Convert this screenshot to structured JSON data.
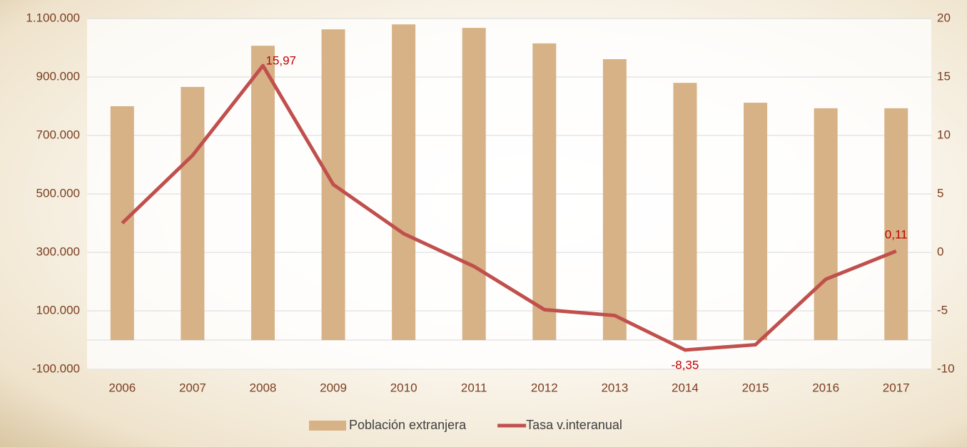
{
  "chart_data": {
    "type": "bar",
    "categories": [
      "2006",
      "2007",
      "2008",
      "2009",
      "2010",
      "2011",
      "2012",
      "2013",
      "2014",
      "2015",
      "2016",
      "2017"
    ],
    "series": [
      {
        "name": "Población extranjera",
        "color": "#d6b286",
        "type": "bar",
        "values": [
          800000,
          866000,
          1007000,
          1063000,
          1080000,
          1068000,
          1015000,
          961000,
          880000,
          812000,
          793000,
          793000
        ]
      },
      {
        "name": "Tasa v.interanual",
        "color": "#c0504d",
        "type": "line",
        "axis": "y2",
        "values": [
          2.5,
          8.3,
          15.97,
          5.8,
          1.6,
          -1.2,
          -4.9,
          -5.4,
          -8.35,
          -7.9,
          -2.3,
          0.11
        ],
        "value_labels": [
          null,
          null,
          "15,97",
          null,
          null,
          null,
          null,
          null,
          "-8,35",
          null,
          null,
          "0,11"
        ]
      }
    ],
    "ylim": [
      -100000,
      1100000
    ],
    "yticks": [
      {
        "value": -100000,
        "label": "-100.000"
      },
      {
        "value": 100000,
        "label": "100.000"
      },
      {
        "value": 300000,
        "label": "300.000"
      },
      {
        "value": 500000,
        "label": "500.000"
      },
      {
        "value": 700000,
        "label": "700.000"
      },
      {
        "value": 900000,
        "label": "900.000"
      },
      {
        "value": 1100000,
        "label": "1.100.000"
      }
    ],
    "y2lim": [
      -10,
      20
    ],
    "y2ticks": [
      -10,
      -5,
      0,
      5,
      10,
      15,
      20
    ],
    "grid": true,
    "legend": "bottom"
  }
}
